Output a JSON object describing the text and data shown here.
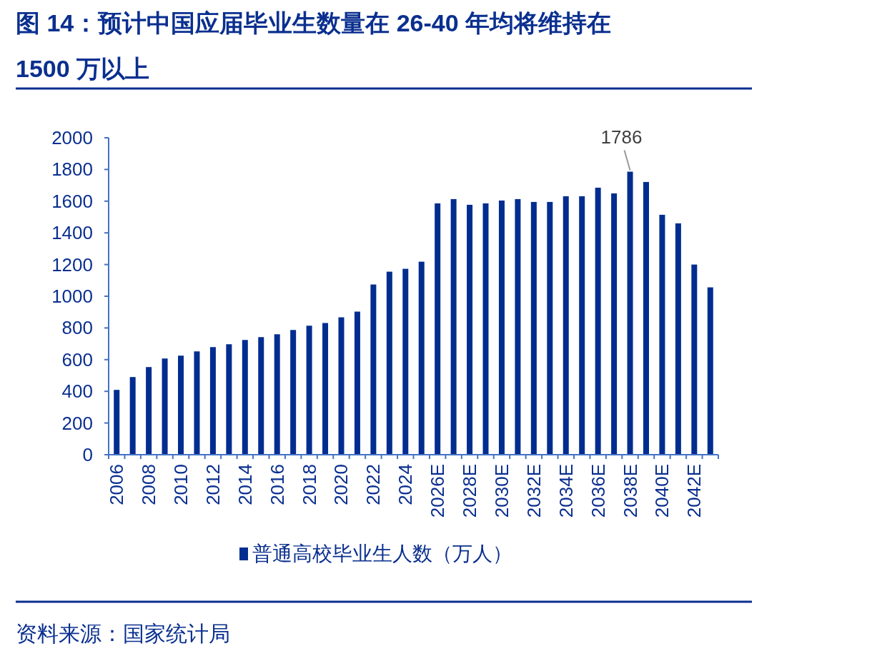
{
  "chart_data": {
    "type": "bar",
    "title": "图 14：预计中国应届毕业生数量在 26-40 年均将维持在 1500 万以上",
    "categories": [
      "2006",
      null,
      "2008",
      null,
      "2010",
      null,
      "2012",
      null,
      "2014",
      null,
      "2016",
      null,
      "2018",
      null,
      "2020",
      null,
      "2022",
      null,
      "2024",
      null,
      "2026E",
      null,
      "2028E",
      null,
      "2030E",
      null,
      "2032E",
      null,
      "2034E",
      null,
      "2036E",
      null,
      "2038E",
      null,
      "2040E",
      null,
      "2042E",
      null
    ],
    "series": [
      {
        "name": "普通高校毕业生人数（万人）",
        "color": "#002d8f",
        "values": [
          409,
          490,
          553,
          607,
          625,
          652,
          679,
          697,
          724,
          742,
          760,
          787,
          814,
          831,
          867,
          903,
          1074,
          1155,
          1173,
          1218,
          1586,
          1613,
          1577,
          1586,
          1604,
          1613,
          1595,
          1595,
          1631,
          1631,
          1685,
          1649,
          1786,
          1721,
          1514,
          1460,
          1200,
          1056
        ],
        "value_labels": [
          null,
          null,
          null,
          null,
          null,
          null,
          null,
          null,
          null,
          null,
          null,
          null,
          null,
          null,
          null,
          null,
          null,
          null,
          null,
          null,
          null,
          null,
          null,
          null,
          null,
          null,
          null,
          null,
          null,
          null,
          null,
          null,
          "1786",
          null,
          null,
          null,
          null,
          null
        ]
      }
    ],
    "ylim": [
      0,
      2000
    ],
    "yticks": [
      0,
      200,
      400,
      600,
      800,
      1000,
      1200,
      1400,
      1600,
      1800,
      2000
    ],
    "legend": "bottom",
    "annotations": [
      "资料来源：国家统计局"
    ]
  }
}
